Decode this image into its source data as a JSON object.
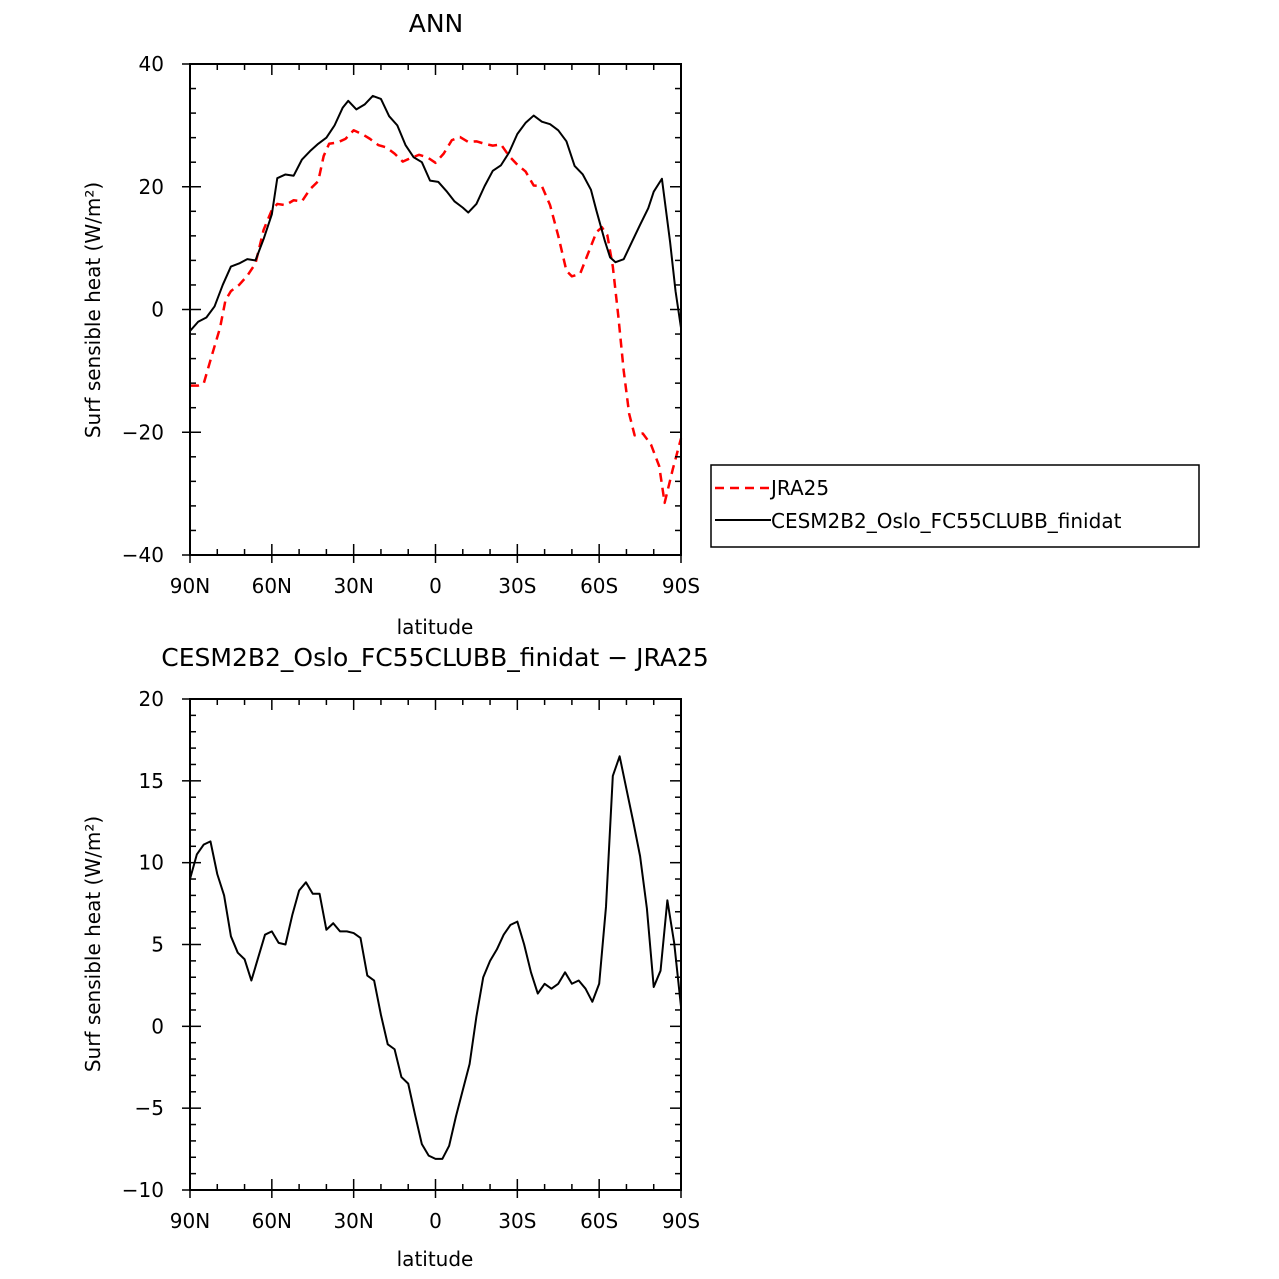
{
  "chart_data": [
    {
      "type": "line",
      "title": "ANN",
      "xlabel": "latitude",
      "ylabel": "Surf sensible heat (W/m²)",
      "xlim": [
        90,
        -90
      ],
      "ylim": [
        -40,
        40
      ],
      "x_ticks": [
        {
          "value": 90,
          "label": "90N"
        },
        {
          "value": 60,
          "label": "60N"
        },
        {
          "value": 30,
          "label": "30N"
        },
        {
          "value": 0,
          "label": "0"
        },
        {
          "value": -30,
          "label": "30S"
        },
        {
          "value": -60,
          "label": "60S"
        },
        {
          "value": -90,
          "label": "90S"
        }
      ],
      "y_ticks": [
        {
          "value": 40,
          "label": "40"
        },
        {
          "value": 20,
          "label": "20"
        },
        {
          "value": 0,
          "label": "0"
        },
        {
          "value": -20,
          "label": "−20"
        },
        {
          "value": -40,
          "label": "−40"
        }
      ],
      "grid": false,
      "legend_position": "right",
      "series": [
        {
          "name": "JRA25",
          "color": "#ff0000",
          "style": "dashed",
          "points": [
            [
              90,
              -12.4
            ],
            [
              87,
              -12.4
            ],
            [
              85,
              -12.1
            ],
            [
              82,
              -7.5
            ],
            [
              79,
              -3
            ],
            [
              77,
              1.5
            ],
            [
              75,
              3.0
            ],
            [
              72,
              4
            ],
            [
              69,
              5.5
            ],
            [
              66,
              7.5
            ],
            [
              63,
              13
            ],
            [
              60,
              16.2
            ],
            [
              58,
              17.2
            ],
            [
              55,
              17
            ],
            [
              52,
              17.8
            ],
            [
              49,
              17.6
            ],
            [
              46,
              19.6
            ],
            [
              43,
              20.9
            ],
            [
              41,
              25
            ],
            [
              39,
              27
            ],
            [
              36,
              27.2
            ],
            [
              33,
              27.8
            ],
            [
              30,
              29.2
            ],
            [
              27,
              28.6
            ],
            [
              24,
              27.8
            ],
            [
              21,
              26.8
            ],
            [
              18,
              26.4
            ],
            [
              15,
              25.4
            ],
            [
              12,
              24.1
            ],
            [
              9,
              24.7
            ],
            [
              6,
              25.2
            ],
            [
              3,
              24.8
            ],
            [
              0,
              23.9
            ],
            [
              -3,
              25.4
            ],
            [
              -6,
              27.6
            ],
            [
              -9,
              28.1
            ],
            [
              -12,
              27.3
            ],
            [
              -15,
              27.4
            ],
            [
              -18,
              27
            ],
            [
              -21,
              26.7
            ],
            [
              -24,
              26.9
            ],
            [
              -27,
              25
            ],
            [
              -30,
              23.6
            ],
            [
              -33,
              22.5
            ],
            [
              -36,
              20.2
            ],
            [
              -39,
              20.1
            ],
            [
              -42,
              17
            ],
            [
              -45,
              12
            ],
            [
              -48,
              6.3
            ],
            [
              -50,
              5.4
            ],
            [
              -53,
              5.8
            ],
            [
              -56,
              9.2
            ],
            [
              -59,
              12.6
            ],
            [
              -61,
              13.4
            ],
            [
              -63,
              12.1
            ],
            [
              -65,
              7
            ],
            [
              -67,
              -1
            ],
            [
              -69,
              -10
            ],
            [
              -71,
              -17
            ],
            [
              -73,
              -20.5
            ],
            [
              -76,
              -20.2
            ],
            [
              -79,
              -22
            ],
            [
              -82,
              -25.5
            ],
            [
              -84,
              -31.5
            ],
            [
              -87,
              -26
            ],
            [
              -90,
              -21
            ]
          ]
        },
        {
          "name": "CESM2B2_Oslo_FC55CLUBB_finidat",
          "color": "#000000",
          "style": "solid",
          "points": [
            [
              90,
              -3.5
            ],
            [
              87,
              -2
            ],
            [
              84,
              -1.3
            ],
            [
              81,
              0.5
            ],
            [
              78,
              4
            ],
            [
              75,
              7
            ],
            [
              72,
              7.5
            ],
            [
              69,
              8.2
            ],
            [
              66,
              8
            ],
            [
              63,
              11.5
            ],
            [
              60,
              15.5
            ],
            [
              58,
              21.4
            ],
            [
              55,
              22
            ],
            [
              52,
              21.8
            ],
            [
              49,
              24.4
            ],
            [
              46,
              25.8
            ],
            [
              43,
              27
            ],
            [
              40,
              28
            ],
            [
              37,
              30
            ],
            [
              34,
              32.9
            ],
            [
              32,
              34
            ],
            [
              29,
              32.6
            ],
            [
              26,
              33.4
            ],
            [
              23,
              34.8
            ],
            [
              20,
              34.3
            ],
            [
              17,
              31.5
            ],
            [
              14,
              30
            ],
            [
              11,
              26.8
            ],
            [
              8,
              24.8
            ],
            [
              5,
              24
            ],
            [
              2,
              21
            ],
            [
              -1,
              20.8
            ],
            [
              -4,
              19.3
            ],
            [
              -7,
              17.6
            ],
            [
              -10,
              16.6
            ],
            [
              -12,
              15.8
            ],
            [
              -15,
              17.2
            ],
            [
              -18,
              20.1
            ],
            [
              -21,
              22.6
            ],
            [
              -24,
              23.5
            ],
            [
              -27,
              25.6
            ],
            [
              -30,
              28.6
            ],
            [
              -33,
              30.4
            ],
            [
              -36,
              31.6
            ],
            [
              -39,
              30.6
            ],
            [
              -42,
              30.2
            ],
            [
              -45,
              29.2
            ],
            [
              -48,
              27.4
            ],
            [
              -51,
              23.4
            ],
            [
              -54,
              22
            ],
            [
              -57,
              19.5
            ],
            [
              -59,
              16.1
            ],
            [
              -62,
              11.3
            ],
            [
              -64,
              8.5
            ],
            [
              -66,
              7.7
            ],
            [
              -69,
              8.2
            ],
            [
              -72,
              11
            ],
            [
              -75,
              13.8
            ],
            [
              -78,
              16.5
            ],
            [
              -80,
              19.2
            ],
            [
              -83,
              21.3
            ],
            [
              -86,
              11
            ],
            [
              -88,
              3
            ],
            [
              -90,
              -3
            ]
          ]
        }
      ]
    },
    {
      "type": "line",
      "title": "CESM2B2_Oslo_FC55CLUBB_finidat − JRA25",
      "xlabel": "latitude",
      "ylabel": "Surf sensible heat (W/m²)",
      "xlim": [
        90,
        -90
      ],
      "ylim": [
        -10,
        20
      ],
      "x_ticks": [
        {
          "value": 90,
          "label": "90N"
        },
        {
          "value": 60,
          "label": "60N"
        },
        {
          "value": 30,
          "label": "30N"
        },
        {
          "value": 0,
          "label": "0"
        },
        {
          "value": -30,
          "label": "30S"
        },
        {
          "value": -60,
          "label": "60S"
        },
        {
          "value": -90,
          "label": "90S"
        }
      ],
      "y_ticks": [
        {
          "value": 20,
          "label": "20"
        },
        {
          "value": 15,
          "label": "15"
        },
        {
          "value": 10,
          "label": "10"
        },
        {
          "value": 5,
          "label": "5"
        },
        {
          "value": 0,
          "label": "0"
        },
        {
          "value": -5,
          "label": "−5"
        },
        {
          "value": -10,
          "label": "−10"
        }
      ],
      "grid": false,
      "series": [
        {
          "color": "#000000",
          "style": "solid",
          "points": [
            [
              90,
              9
            ],
            [
              87.5,
              10.5
            ],
            [
              85,
              11.1
            ],
            [
              82.5,
              11.3
            ],
            [
              80,
              9.3
            ],
            [
              77.5,
              8
            ],
            [
              75,
              5.5
            ],
            [
              72.5,
              4.5
            ],
            [
              70,
              4.1
            ],
            [
              67.5,
              2.8
            ],
            [
              65,
              4.2
            ],
            [
              62.5,
              5.6
            ],
            [
              60,
              5.8
            ],
            [
              57.5,
              5.1
            ],
            [
              55,
              5
            ],
            [
              52.5,
              6.8
            ],
            [
              50,
              8.3
            ],
            [
              47.5,
              8.8
            ],
            [
              45,
              8.1
            ],
            [
              42.5,
              8.1
            ],
            [
              40,
              5.9
            ],
            [
              37.5,
              6.3
            ],
            [
              35,
              5.8
            ],
            [
              32.5,
              5.8
            ],
            [
              30,
              5.7
            ],
            [
              27.5,
              5.4
            ],
            [
              25,
              3.1
            ],
            [
              22.5,
              2.8
            ],
            [
              20,
              0.7
            ],
            [
              17.5,
              -1.1
            ],
            [
              15,
              -1.4
            ],
            [
              12.5,
              -3.1
            ],
            [
              10,
              -3.5
            ],
            [
              7.5,
              -5.4
            ],
            [
              5,
              -7.2
            ],
            [
              2.5,
              -7.9
            ],
            [
              0,
              -8.1
            ],
            [
              -2.5,
              -8.1
            ],
            [
              -5,
              -7.3
            ],
            [
              -7.5,
              -5.5
            ],
            [
              -10,
              -3.9
            ],
            [
              -12.5,
              -2.3
            ],
            [
              -15,
              0.6
            ],
            [
              -17.5,
              3
            ],
            [
              -20,
              4
            ],
            [
              -22.5,
              4.7
            ],
            [
              -25,
              5.6
            ],
            [
              -27.5,
              6.2
            ],
            [
              -30,
              6.4
            ],
            [
              -32.5,
              5
            ],
            [
              -35,
              3.3
            ],
            [
              -37.5,
              2
            ],
            [
              -40,
              2.6
            ],
            [
              -42.5,
              2.3
            ],
            [
              -45,
              2.6
            ],
            [
              -47.5,
              3.3
            ],
            [
              -50,
              2.6
            ],
            [
              -52.5,
              2.8
            ],
            [
              -55,
              2.3
            ],
            [
              -57.5,
              1.5
            ],
            [
              -60,
              2.6
            ],
            [
              -62.5,
              7.3
            ],
            [
              -65,
              15.3
            ],
            [
              -67.5,
              16.5
            ],
            [
              -70,
              14.5
            ],
            [
              -72.5,
              12.5
            ],
            [
              -75,
              10.4
            ],
            [
              -77.5,
              7.2
            ],
            [
              -80,
              2.4
            ],
            [
              -82.5,
              3.4
            ],
            [
              -85,
              7.7
            ],
            [
              -87.5,
              5.1
            ],
            [
              -90,
              1.2
            ]
          ]
        }
      ]
    }
  ]
}
